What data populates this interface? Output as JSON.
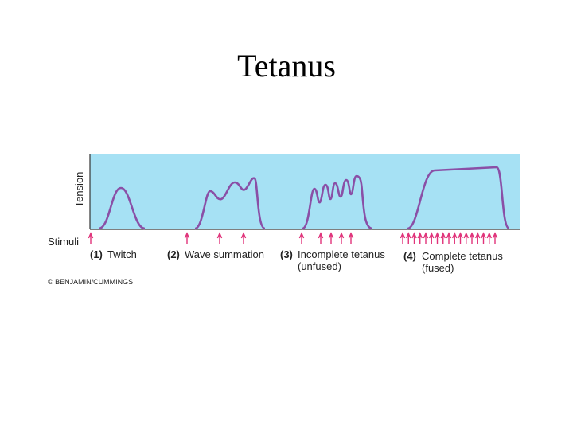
{
  "title": "Tetanus",
  "y_axis_label": "Tension",
  "stimuli_label": "Stimuli",
  "panels": [
    {
      "number": "(1)",
      "label": [
        "Twitch"
      ]
    },
    {
      "number": "(2)",
      "label": [
        "Wave summation"
      ]
    },
    {
      "number": "(3)",
      "label": [
        "Incomplete tetanus",
        "(unfused)"
      ]
    },
    {
      "number": "(4)",
      "label": [
        "Complete tetanus",
        "(fused)"
      ]
    }
  ],
  "credit": "© BENJAMIN/CUMMINGS"
}
